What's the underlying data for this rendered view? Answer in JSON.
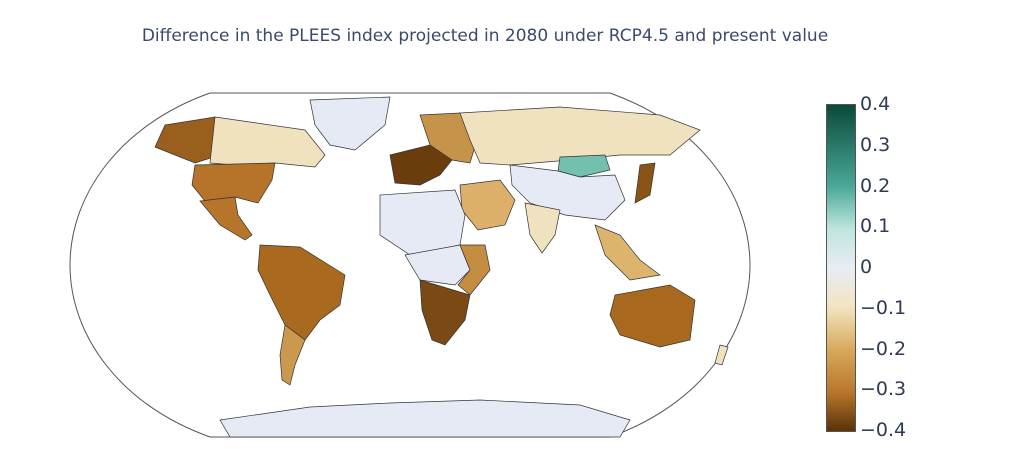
{
  "title": "Difference in the PLEES index projected in 2080 under RCP4.5 and present value",
  "colorbar": {
    "ticks": [
      "0.4",
      "0.3",
      "0.2",
      "0.1",
      "0",
      "−0.1",
      "−0.2",
      "−0.3",
      "−0.4"
    ],
    "min": -0.4,
    "max": 0.4,
    "colors": {
      "top": "#0b4a3a",
      "upper": "#4aa898",
      "light_teal": "#bfe5dd",
      "neutral": "#e8ecf5",
      "light_tan": "#f2e4c0",
      "tan": "#d8a95c",
      "mid_brown": "#b9772c",
      "bottom": "#5a3208"
    }
  },
  "map": {
    "projection": "robinson",
    "land_colors": {
      "greenland": "#e6eaf4",
      "canada": "#f1e2bf",
      "alaska": "#9a5f1c",
      "usa": "#b6732a",
      "mexico": "#b7742b",
      "south_america": "#a9691f",
      "southern_cone": "#c99a4e",
      "europe_west": "#6a3d0f",
      "europe_east": "#c59349",
      "russia": "#f1e2bf",
      "mongolia": "#72c0ad",
      "china": "#e6eaf4",
      "middle_east": "#dcb06a",
      "india": "#f1e2bf",
      "north_africa": "#e6eaf4",
      "central_africa": "#e6eaf4",
      "southern_africa": "#7b4913",
      "east_africa": "#c48d42",
      "southeast_asia": "#ddb46d",
      "japan": "#8a5417",
      "australia": "#a8691f",
      "antarctica": "#e6eaf4"
    }
  }
}
